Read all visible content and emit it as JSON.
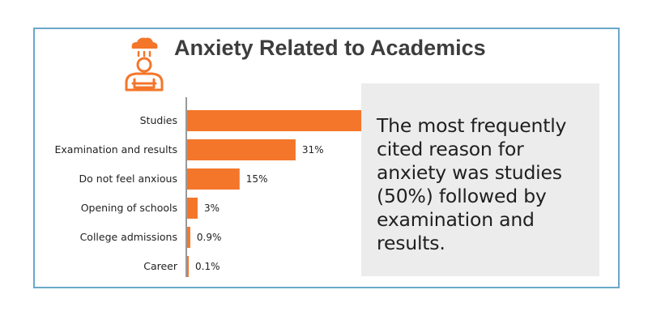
{
  "header": {
    "title": "Anxiety Related to Academics",
    "icon": "stressed-person-rain-cloud-icon"
  },
  "colors": {
    "bar": "#f4762a",
    "icon": "#f4762a",
    "border": "#6aa8c9",
    "callout_bg": "#ececec"
  },
  "callout": {
    "text": "The most frequently cited reason for anxiety was studies (50%) followed by examination and results."
  },
  "chart_data": {
    "type": "bar",
    "orientation": "horizontal",
    "categories": [
      "Studies",
      "Examination and results",
      "Do not feel anxious",
      "Opening of schools",
      "College admissions",
      "Career"
    ],
    "values": [
      50,
      31,
      15,
      3,
      0.9,
      0.1
    ],
    "value_labels": [
      "",
      "31%",
      "15%",
      "3%",
      "0.9%",
      "0.1%"
    ],
    "title": "Anxiety Related to Academics",
    "xlabel": "",
    "ylabel": "",
    "xlim": [
      0,
      50
    ],
    "grid": false
  }
}
